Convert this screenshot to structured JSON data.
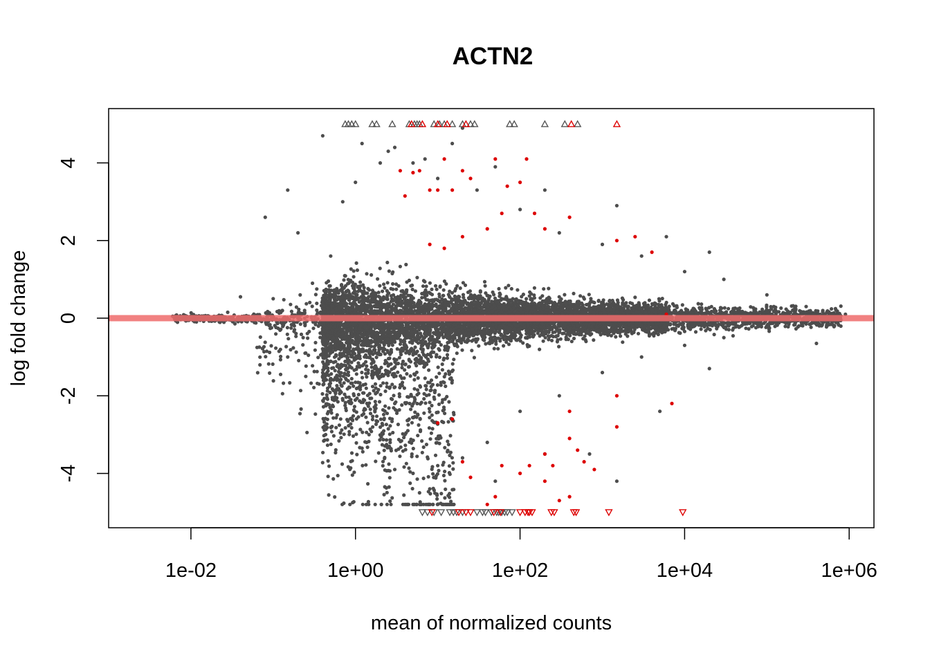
{
  "chart_data": {
    "type": "scatter",
    "title": "ACTN2",
    "xlabel": "mean of normalized counts",
    "ylabel": "log fold change",
    "x_scale": "log10",
    "xlim": [
      0.001,
      2000000
    ],
    "ylim": [
      -5.4,
      5.4
    ],
    "x_ticks": [
      {
        "value": 0.01,
        "label": "1e-02"
      },
      {
        "value": 1,
        "label": "1e+00"
      },
      {
        "value": 100,
        "label": "1e+02"
      },
      {
        "value": 10000,
        "label": "1e+04"
      },
      {
        "value": 1000000,
        "label": "1e+06"
      }
    ],
    "y_ticks": [
      {
        "value": -4,
        "label": "-4"
      },
      {
        "value": -2,
        "label": "-2"
      },
      {
        "value": 0,
        "label": "0"
      },
      {
        "value": 2,
        "label": "2"
      },
      {
        "value": 4,
        "label": "4"
      }
    ],
    "reference_line": {
      "y": 0,
      "color": "#ee6b6b"
    },
    "colors": {
      "not_significant": "#4d4d4d",
      "significant": "#dd0000"
    },
    "series": [
      {
        "kind": "points",
        "color": "#4d4d4d",
        "points": [
          [
            0.006,
            0.05
          ],
          [
            0.01,
            0.05
          ],
          [
            0.02,
            0.04
          ],
          [
            0.05,
            0.03
          ],
          [
            0.1,
            0.02
          ],
          [
            0.2,
            0.0
          ],
          [
            0.3,
            -0.05
          ],
          [
            0.5,
            -0.2
          ],
          [
            0.7,
            -0.4
          ],
          [
            1,
            -0.6
          ],
          [
            1.5,
            -1.0
          ],
          [
            2,
            -1.5
          ],
          [
            3,
            -2.2
          ],
          [
            4,
            -3.0
          ],
          [
            5,
            -4.0
          ],
          [
            6,
            -4.5
          ],
          [
            8,
            -4.4
          ],
          [
            10,
            -3.8
          ],
          [
            20,
            -3.6
          ],
          [
            40,
            -3.2
          ],
          [
            100,
            -2.4
          ],
          [
            300,
            -2.0
          ],
          [
            1000,
            -1.4
          ],
          [
            3000,
            -1.0
          ],
          [
            10000,
            -0.7
          ],
          [
            30000,
            -0.5
          ],
          [
            100000,
            -0.2
          ],
          [
            300000,
            -0.1
          ],
          [
            900000,
            0.1
          ],
          [
            0.04,
            0.55
          ],
          [
            0.1,
            0.5
          ],
          [
            0.3,
            0.9
          ],
          [
            0.5,
            1.6
          ],
          [
            0.7,
            3.0
          ],
          [
            1,
            3.5
          ],
          [
            2,
            4.0
          ],
          [
            3,
            4.4
          ],
          [
            5,
            4.0
          ],
          [
            10,
            3.6
          ],
          [
            30,
            3.3
          ],
          [
            100,
            2.8
          ],
          [
            300,
            2.2
          ],
          [
            1000,
            1.9
          ],
          [
            3000,
            1.6
          ],
          [
            10000,
            1.2
          ],
          [
            30000,
            1.0
          ],
          [
            100000,
            0.6
          ],
          [
            300000,
            0.3
          ],
          [
            0.08,
            2.6
          ],
          [
            0.15,
            3.3
          ],
          [
            0.2,
            2.2
          ],
          [
            0.4,
            4.7
          ],
          [
            1.2,
            4.5
          ],
          [
            2.5,
            4.3
          ],
          [
            7,
            4.1
          ],
          [
            15,
            4.5
          ],
          [
            20,
            4.9
          ],
          [
            50,
            3.9
          ],
          [
            200,
            3.3
          ],
          [
            1500,
            2.9
          ],
          [
            6000,
            2.1
          ],
          [
            20000,
            1.7
          ],
          [
            0.15,
            -1.0
          ],
          [
            1.2,
            -2.5
          ],
          [
            3,
            -3.9
          ],
          [
            5,
            -4.8
          ],
          [
            50,
            -4.2
          ],
          [
            200,
            -3.5
          ],
          [
            700,
            -3.5
          ],
          [
            1500,
            -4.2
          ],
          [
            5000,
            -2.4
          ],
          [
            20000,
            -1.3
          ],
          [
            400000,
            -0.65
          ]
        ]
      },
      {
        "kind": "points",
        "color": "#dd0000",
        "points": [
          [
            3.5,
            3.8
          ],
          [
            4,
            3.15
          ],
          [
            5,
            3.75
          ],
          [
            6,
            3.8
          ],
          [
            8,
            3.3
          ],
          [
            10,
            3.3
          ],
          [
            12,
            4.1
          ],
          [
            15,
            3.3
          ],
          [
            20,
            3.8
          ],
          [
            25,
            3.6
          ],
          [
            50,
            4.1
          ],
          [
            70,
            3.4
          ],
          [
            100,
            3.5
          ],
          [
            120,
            4.1
          ],
          [
            150,
            2.7
          ],
          [
            200,
            2.3
          ],
          [
            400,
            2.6
          ],
          [
            1500,
            2.0
          ],
          [
            2500,
            2.1
          ],
          [
            4000,
            1.7
          ],
          [
            6000,
            0.1
          ],
          [
            8,
            1.9
          ],
          [
            12,
            1.8
          ],
          [
            20,
            2.1
          ],
          [
            40,
            2.3
          ],
          [
            60,
            2.7
          ],
          [
            7000,
            -2.2
          ],
          [
            1500,
            -2.8
          ],
          [
            1500,
            -2.0
          ],
          [
            400,
            -2.4
          ],
          [
            400,
            -3.1
          ],
          [
            500,
            -3.4
          ],
          [
            600,
            -3.7
          ],
          [
            800,
            -3.9
          ],
          [
            200,
            -3.5
          ],
          [
            200,
            -4.2
          ],
          [
            130,
            -3.8
          ],
          [
            100,
            -4.0
          ],
          [
            60,
            -3.8
          ],
          [
            50,
            -4.6
          ],
          [
            40,
            -4.8
          ],
          [
            25,
            -4.1
          ],
          [
            20,
            -3.7
          ],
          [
            15,
            -2.6
          ],
          [
            10,
            -2.7
          ],
          [
            300,
            -4.7
          ],
          [
            400,
            -4.6
          ],
          [
            250,
            -3.8
          ]
        ]
      },
      {
        "kind": "triangles-up",
        "color": "#555555",
        "y": 5.0,
        "x": [
          0.75,
          0.82,
          0.9,
          1.0,
          1.6,
          1.8,
          2.8,
          4.5,
          5.2,
          5.6,
          6.0,
          9.0,
          10.5,
          12.0,
          15,
          20,
          25,
          28,
          75,
          85,
          200,
          350,
          500
        ]
      },
      {
        "kind": "triangles-up",
        "color": "#dd0000",
        "y": 5.0,
        "x": [
          4.8,
          6.5,
          10.0,
          13.0,
          22,
          420,
          1500
        ]
      },
      {
        "kind": "triangles-down",
        "color": "#555555",
        "y": -5.0,
        "x": [
          6.5,
          7.5,
          9.0,
          11,
          14,
          15.5,
          17,
          20,
          30,
          35,
          38,
          45,
          52,
          55,
          60,
          65,
          70,
          80
        ]
      },
      {
        "kind": "triangles-down",
        "color": "#dd0000",
        "y": -5.0,
        "x": [
          8.5,
          18,
          22,
          25,
          48,
          58,
          100,
          115,
          125,
          130,
          140,
          240,
          260,
          450,
          480,
          1200,
          9500
        ]
      }
    ]
  }
}
